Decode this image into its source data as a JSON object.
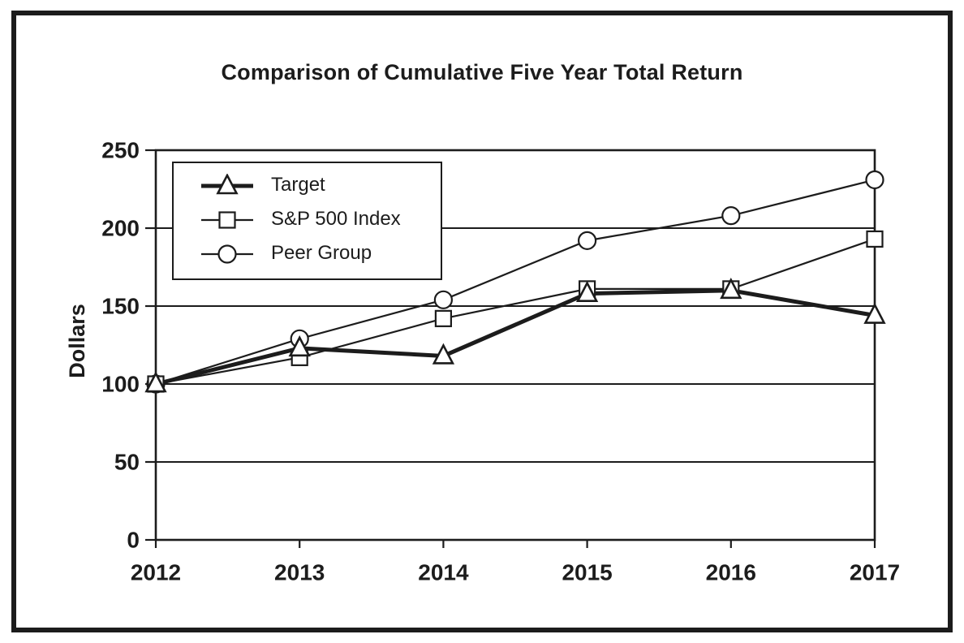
{
  "chart_data": {
    "type": "line",
    "title": "Comparison of Cumulative Five Year Total Return",
    "xlabel": "",
    "ylabel": "Dollars",
    "x": [
      "2012",
      "2013",
      "2014",
      "2015",
      "2016",
      "2017"
    ],
    "yticks": [
      0,
      50,
      100,
      150,
      200,
      250
    ],
    "ylim": [
      0,
      250
    ],
    "grid": "horizontal-gridlines-at-50-100-150-200",
    "legend_position": "upper-left-inside",
    "series": [
      {
        "name": "Target",
        "marker": "triangle",
        "line_weight": "thick",
        "values": [
          100,
          123,
          118,
          158,
          160,
          144
        ]
      },
      {
        "name": "S&P 500 Index",
        "marker": "square",
        "line_weight": "thin",
        "values": [
          100,
          117,
          142,
          161,
          161,
          193
        ]
      },
      {
        "name": "Peer Group",
        "marker": "circle",
        "line_weight": "thin",
        "values": [
          100,
          129,
          154,
          192,
          208,
          231
        ]
      }
    ],
    "colors": {
      "line": "#1c1c1c",
      "marker_fill": "#ffffff",
      "background": "#ffffff",
      "frame_border": "#1c1c1c"
    }
  }
}
